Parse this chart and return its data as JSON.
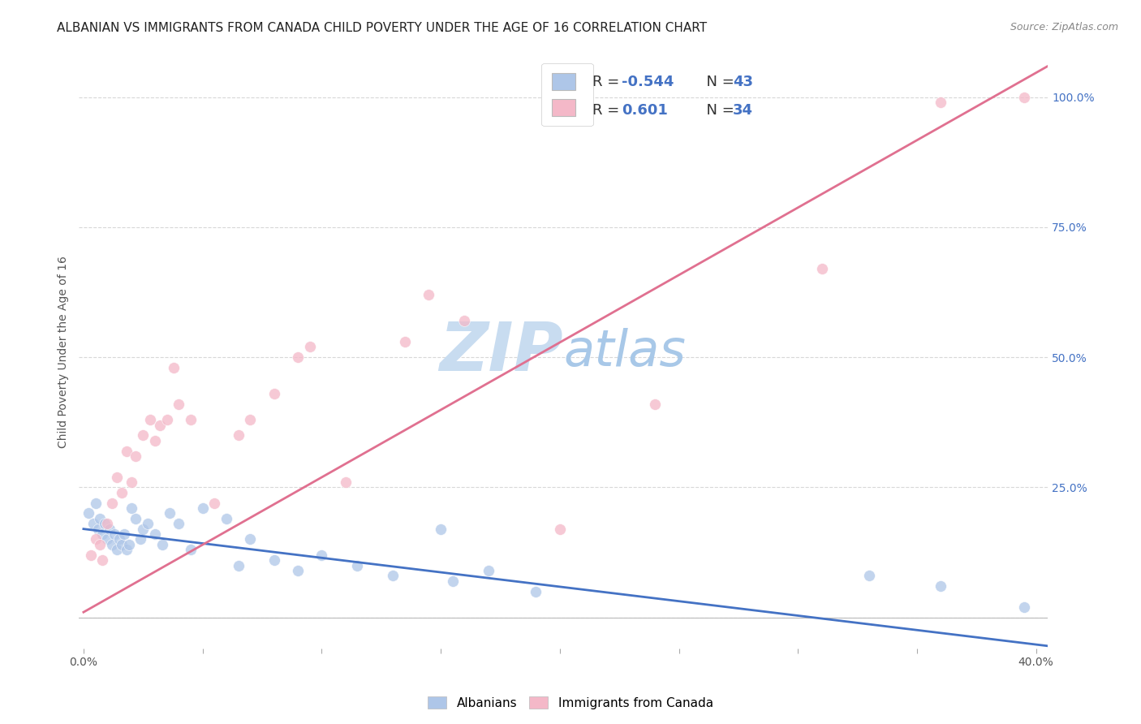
{
  "title": "ALBANIAN VS IMMIGRANTS FROM CANADA CHILD POVERTY UNDER THE AGE OF 16 CORRELATION CHART",
  "source": "Source: ZipAtlas.com",
  "ylabel": "Child Poverty Under the Age of 16",
  "xlim": [
    -0.002,
    0.405
  ],
  "ylim": [
    -0.06,
    1.08
  ],
  "xticks": [
    0.0,
    0.05,
    0.1,
    0.15,
    0.2,
    0.25,
    0.3,
    0.35,
    0.4
  ],
  "xticklabels": [
    "0.0%",
    "",
    "",
    "",
    "",
    "",
    "",
    "",
    "40.0%"
  ],
  "yticks_right": [
    0.0,
    0.25,
    0.5,
    0.75,
    1.0
  ],
  "yticklabels_right": [
    "",
    "25.0%",
    "50.0%",
    "75.0%",
    "100.0%"
  ],
  "legend_entries": [
    {
      "label": "Albanians",
      "color": "#aec6e8"
    },
    {
      "label": "Immigrants from Canada",
      "color": "#f4b8c8"
    }
  ],
  "blue_line": {
    "x0": 0.0,
    "y0": 0.17,
    "x1": 0.405,
    "y1": -0.055
  },
  "pink_line": {
    "x0": 0.0,
    "y0": 0.01,
    "x1": 0.405,
    "y1": 1.06
  },
  "albanians_x": [
    0.002,
    0.004,
    0.005,
    0.006,
    0.007,
    0.008,
    0.009,
    0.01,
    0.011,
    0.012,
    0.013,
    0.014,
    0.015,
    0.016,
    0.017,
    0.018,
    0.019,
    0.02,
    0.022,
    0.024,
    0.025,
    0.027,
    0.03,
    0.033,
    0.036,
    0.04,
    0.045,
    0.05,
    0.06,
    0.065,
    0.07,
    0.08,
    0.09,
    0.1,
    0.115,
    0.13,
    0.15,
    0.155,
    0.17,
    0.19,
    0.33,
    0.36,
    0.395
  ],
  "albanians_y": [
    0.2,
    0.18,
    0.22,
    0.17,
    0.19,
    0.16,
    0.18,
    0.15,
    0.17,
    0.14,
    0.16,
    0.13,
    0.15,
    0.14,
    0.16,
    0.13,
    0.14,
    0.21,
    0.19,
    0.15,
    0.17,
    0.18,
    0.16,
    0.14,
    0.2,
    0.18,
    0.13,
    0.21,
    0.19,
    0.1,
    0.15,
    0.11,
    0.09,
    0.12,
    0.1,
    0.08,
    0.17,
    0.07,
    0.09,
    0.05,
    0.08,
    0.06,
    0.02
  ],
  "canada_x": [
    0.003,
    0.005,
    0.007,
    0.008,
    0.01,
    0.012,
    0.014,
    0.016,
    0.018,
    0.02,
    0.022,
    0.025,
    0.028,
    0.03,
    0.032,
    0.035,
    0.038,
    0.04,
    0.045,
    0.055,
    0.065,
    0.07,
    0.08,
    0.09,
    0.095,
    0.11,
    0.135,
    0.145,
    0.16,
    0.2,
    0.24,
    0.31,
    0.36,
    0.395
  ],
  "canada_y": [
    0.12,
    0.15,
    0.14,
    0.11,
    0.18,
    0.22,
    0.27,
    0.24,
    0.32,
    0.26,
    0.31,
    0.35,
    0.38,
    0.34,
    0.37,
    0.38,
    0.48,
    0.41,
    0.38,
    0.22,
    0.35,
    0.38,
    0.43,
    0.5,
    0.52,
    0.26,
    0.53,
    0.62,
    0.57,
    0.17,
    0.41,
    0.67,
    0.99,
    1.0
  ],
  "background_color": "#ffffff",
  "grid_color": "#d8d8d8",
  "title_fontsize": 11,
  "source_fontsize": 9,
  "axis_label_fontsize": 10,
  "tick_fontsize": 10,
  "watermark_zip_color": "#c8dcf0",
  "watermark_atlas_color": "#a8c8e8",
  "watermark_fontsize": 60,
  "scatter_size": 100,
  "scatter_alpha": 0.75,
  "blue_line_color": "#4472c4",
  "pink_line_color": "#e07090"
}
